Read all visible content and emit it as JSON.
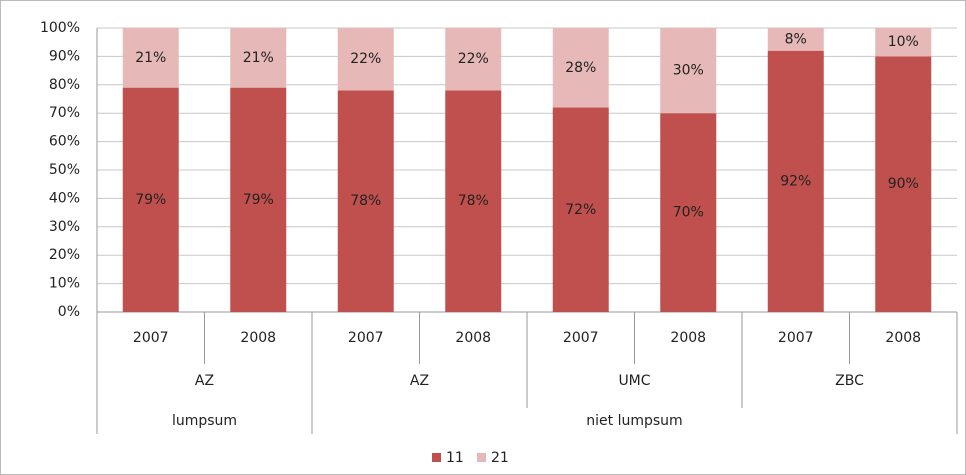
{
  "chart_data": {
    "type": "stacked-bar",
    "categories": [
      "2007",
      "2008",
      "2007",
      "2008",
      "2007",
      "2008",
      "2007",
      "2008"
    ],
    "groups": [
      "AZ",
      null,
      "AZ",
      null,
      "UMC",
      null,
      "ZBC",
      null
    ],
    "supergroups": [
      "lumpsum",
      null,
      "niet lumpsum",
      null,
      null,
      null,
      null,
      null
    ],
    "series": [
      {
        "name": "11",
        "color": "#c0504d",
        "values": [
          79,
          79,
          78,
          78,
          72,
          70,
          92,
          90
        ],
        "value_labels": [
          "79%",
          "79%",
          "78%",
          "78%",
          "72%",
          "70%",
          "92%",
          "90%"
        ]
      },
      {
        "name": "21",
        "color": "#e6b9b8",
        "values": [
          21,
          21,
          22,
          22,
          28,
          30,
          8,
          10
        ],
        "value_labels": [
          "21%",
          "21%",
          "22%",
          "22%",
          "28%",
          "30%",
          "8%",
          "10%"
        ]
      }
    ],
    "ylim": [
      0,
      100
    ],
    "yticks": [
      {
        "value": 0,
        "label": "0%"
      },
      {
        "value": 10,
        "label": "10%"
      },
      {
        "value": 20,
        "label": "20%"
      },
      {
        "value": 30,
        "label": "30%"
      },
      {
        "value": 40,
        "label": "40%"
      },
      {
        "value": 50,
        "label": "50%"
      },
      {
        "value": 60,
        "label": "60%"
      },
      {
        "value": 70,
        "label": "70%"
      },
      {
        "value": 80,
        "label": "80%"
      },
      {
        "value": 90,
        "label": "90%"
      },
      {
        "value": 100,
        "label": "100%"
      }
    ],
    "grid": true,
    "legend": "bottom"
  }
}
